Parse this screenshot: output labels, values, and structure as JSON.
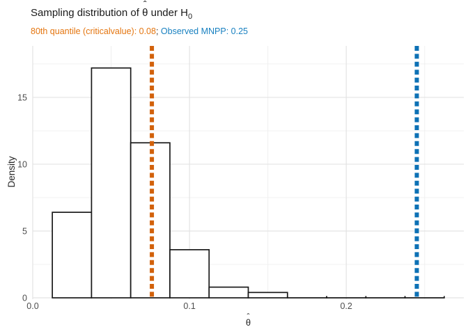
{
  "title": {
    "prefix": "Sampling distribution of ",
    "theta": "θ",
    "hat": "ˆ",
    "suffix": " under H",
    "subscript": "0"
  },
  "subtitle": {
    "critical_text": "80th quantile (criticalvalue): 0.08",
    "separator": ";",
    "observed_text": " Observed MNPP: 0.25"
  },
  "colors": {
    "title_text": "#1a1a1a",
    "subtitle_separator": "#333333",
    "critical_orange_text": "#e4750f",
    "critical_orange_line": "#d2610b",
    "observed_blue_text": "#1880c0",
    "observed_blue_line": "#0d71b5",
    "bar_fill": "#ffffff",
    "bar_stroke": "#1a1a1a",
    "grid_major": "#e3e3e3",
    "grid_minor": "#f0f0f0",
    "axis_text": "#4d4d4d",
    "axis_title": "#262626",
    "background": "#ffffff"
  },
  "chart_data": {
    "type": "bar",
    "subtype": "histogram",
    "title": "Sampling distribution of θ̂ under H₀",
    "subtitle": "80th quantile (criticalvalue): 0.08; Observed MNPP: 0.25",
    "xlabel": "θ̂",
    "xlabel_symbol": "θ",
    "xlabel_hat": "ˆ",
    "ylabel": "Density",
    "bin_width": 0.025,
    "bin_edges": [
      0.0125,
      0.0375,
      0.0625,
      0.0875,
      0.1125,
      0.1375,
      0.1625,
      0.1875,
      0.2125,
      0.2375,
      0.2625
    ],
    "bin_heights": [
      6.4,
      17.2,
      11.6,
      3.6,
      0.8,
      0.4,
      0,
      0,
      0,
      0
    ],
    "vlines": [
      {
        "name": "critical-value-line",
        "x": 0.076,
        "value_label": "0.08",
        "label": "80th quantile (criticalvalue)",
        "style": "dashed",
        "color": "#d2610b"
      },
      {
        "name": "observed-mnpp-line",
        "x": 0.245,
        "value_label": "0.25",
        "label": "Observed MNPP",
        "style": "dashed",
        "color": "#0d71b5"
      }
    ],
    "x_ticks": [
      0.0,
      0.1,
      0.2
    ],
    "x_tick_labels": [
      "0.0",
      "0.1",
      "0.2"
    ],
    "x_minor_ticks": [
      0.05,
      0.15,
      0.25
    ],
    "y_ticks": [
      0,
      5,
      10,
      15
    ],
    "y_tick_labels": [
      "0",
      "5",
      "10",
      "15"
    ],
    "y_minor_ticks": [
      2.5,
      7.5,
      12.5,
      17.5
    ],
    "xlim": [
      0,
      0.275
    ],
    "ylim": [
      0,
      18.85
    ],
    "grid": true,
    "legend": false
  }
}
